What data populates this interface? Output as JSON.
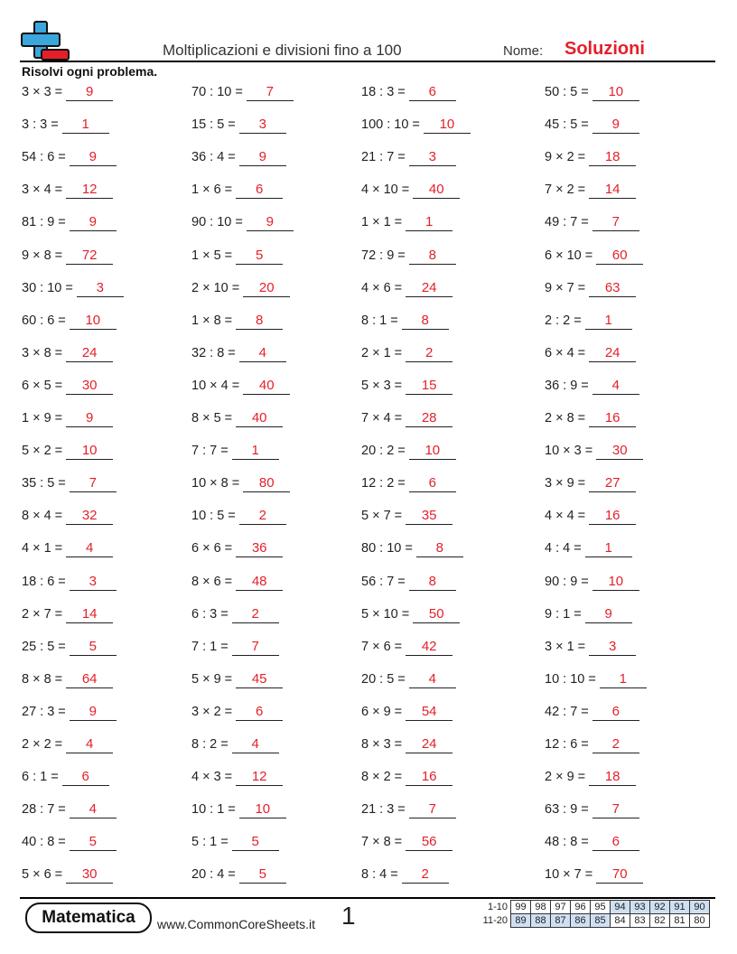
{
  "header": {
    "title": "Moltiplicazioni e divisioni fino a 100",
    "name_label": "Nome:",
    "name_value": "Soluzioni",
    "instructions": "Risolvi ogni problema."
  },
  "columns": [
    [
      {
        "q": "3 × 3 =",
        "a": "9"
      },
      {
        "q": "3 : 3 =",
        "a": "1"
      },
      {
        "q": "54 : 6 =",
        "a": "9"
      },
      {
        "q": "3 × 4 =",
        "a": "12"
      },
      {
        "q": "81 : 9 =",
        "a": "9"
      },
      {
        "q": "9 × 8 =",
        "a": "72"
      },
      {
        "q": "30 : 10 =",
        "a": "3"
      },
      {
        "q": "60 : 6 =",
        "a": "10"
      },
      {
        "q": "3 × 8 =",
        "a": "24"
      },
      {
        "q": "6 × 5 =",
        "a": "30"
      },
      {
        "q": "1 × 9 =",
        "a": "9"
      },
      {
        "q": "5 × 2 =",
        "a": "10"
      },
      {
        "q": "35 : 5 =",
        "a": "7"
      },
      {
        "q": "8 × 4 =",
        "a": "32"
      },
      {
        "q": "4 × 1 =",
        "a": "4"
      },
      {
        "q": "18 : 6 =",
        "a": "3"
      },
      {
        "q": "2 × 7 =",
        "a": "14"
      },
      {
        "q": "25 : 5 =",
        "a": "5"
      },
      {
        "q": "8 × 8 =",
        "a": "64"
      },
      {
        "q": "27 : 3 =",
        "a": "9"
      },
      {
        "q": "2 × 2 =",
        "a": "4"
      },
      {
        "q": "6 : 1 =",
        "a": "6"
      },
      {
        "q": "28 : 7 =",
        "a": "4"
      },
      {
        "q": "40 : 8 =",
        "a": "5"
      },
      {
        "q": "5 × 6 =",
        "a": "30"
      }
    ],
    [
      {
        "q": "70 : 10 =",
        "a": "7"
      },
      {
        "q": "15 : 5 =",
        "a": "3"
      },
      {
        "q": "36 : 4 =",
        "a": "9"
      },
      {
        "q": "1 × 6 =",
        "a": "6"
      },
      {
        "q": "90 : 10 =",
        "a": "9"
      },
      {
        "q": "1 × 5 =",
        "a": "5"
      },
      {
        "q": "2 × 10 =",
        "a": "20"
      },
      {
        "q": "1 × 8 =",
        "a": "8"
      },
      {
        "q": "32 : 8 =",
        "a": "4"
      },
      {
        "q": "10 × 4 =",
        "a": "40"
      },
      {
        "q": "8 × 5 =",
        "a": "40"
      },
      {
        "q": "7 : 7 =",
        "a": "1"
      },
      {
        "q": "10 × 8 =",
        "a": "80"
      },
      {
        "q": "10 : 5 =",
        "a": "2"
      },
      {
        "q": "6 × 6 =",
        "a": "36"
      },
      {
        "q": "8 × 6 =",
        "a": "48"
      },
      {
        "q": "6 : 3 =",
        "a": "2"
      },
      {
        "q": "7 : 1 =",
        "a": "7"
      },
      {
        "q": "5 × 9 =",
        "a": "45"
      },
      {
        "q": "3 × 2 =",
        "a": "6"
      },
      {
        "q": "8 : 2 =",
        "a": "4"
      },
      {
        "q": "4 × 3 =",
        "a": "12"
      },
      {
        "q": "10 : 1 =",
        "a": "10"
      },
      {
        "q": "5 : 1 =",
        "a": "5"
      },
      {
        "q": "20 : 4 =",
        "a": "5"
      }
    ],
    [
      {
        "q": "18 : 3 =",
        "a": "6"
      },
      {
        "q": "100 : 10 =",
        "a": "10"
      },
      {
        "q": "21 : 7 =",
        "a": "3"
      },
      {
        "q": "4 × 10 =",
        "a": "40"
      },
      {
        "q": "1 × 1 =",
        "a": "1"
      },
      {
        "q": "72 : 9 =",
        "a": "8"
      },
      {
        "q": "4 × 6 =",
        "a": "24"
      },
      {
        "q": "8 : 1 =",
        "a": "8"
      },
      {
        "q": "2 × 1 =",
        "a": "2"
      },
      {
        "q": "5 × 3 =",
        "a": "15"
      },
      {
        "q": "7 × 4 =",
        "a": "28"
      },
      {
        "q": "20 : 2 =",
        "a": "10"
      },
      {
        "q": "12 : 2 =",
        "a": "6"
      },
      {
        "q": "5 × 7 =",
        "a": "35"
      },
      {
        "q": "80 : 10 =",
        "a": "8"
      },
      {
        "q": "56 : 7 =",
        "a": "8"
      },
      {
        "q": "5 × 10 =",
        "a": "50"
      },
      {
        "q": "7 × 6 =",
        "a": "42"
      },
      {
        "q": "20 : 5 =",
        "a": "4"
      },
      {
        "q": "6 × 9 =",
        "a": "54"
      },
      {
        "q": "8 × 3 =",
        "a": "24"
      },
      {
        "q": "8 × 2 =",
        "a": "16"
      },
      {
        "q": "21 : 3 =",
        "a": "7"
      },
      {
        "q": "7 × 8 =",
        "a": "56"
      },
      {
        "q": "8 : 4 =",
        "a": "2"
      }
    ],
    [
      {
        "q": "50 : 5 =",
        "a": "10"
      },
      {
        "q": "45 : 5 =",
        "a": "9"
      },
      {
        "q": "9 × 2 =",
        "a": "18"
      },
      {
        "q": "7 × 2 =",
        "a": "14"
      },
      {
        "q": "49 : 7 =",
        "a": "7"
      },
      {
        "q": "6 × 10 =",
        "a": "60"
      },
      {
        "q": "9 × 7 =",
        "a": "63"
      },
      {
        "q": "2 : 2 =",
        "a": "1"
      },
      {
        "q": "6 × 4 =",
        "a": "24"
      },
      {
        "q": "36 : 9 =",
        "a": "4"
      },
      {
        "q": "2 × 8 =",
        "a": "16"
      },
      {
        "q": "10 × 3 =",
        "a": "30"
      },
      {
        "q": "3 × 9 =",
        "a": "27"
      },
      {
        "q": "4 × 4 =",
        "a": "16"
      },
      {
        "q": "4 : 4 =",
        "a": "1"
      },
      {
        "q": "90 : 9 =",
        "a": "10"
      },
      {
        "q": "9 : 1 =",
        "a": "9"
      },
      {
        "q": "3 × 1 =",
        "a": "3"
      },
      {
        "q": "10 : 10 =",
        "a": "1"
      },
      {
        "q": "42 : 7 =",
        "a": "6"
      },
      {
        "q": "12 : 6 =",
        "a": "2"
      },
      {
        "q": "2 × 9 =",
        "a": "18"
      },
      {
        "q": "63 : 9 =",
        "a": "7"
      },
      {
        "q": "48 : 8 =",
        "a": "6"
      },
      {
        "q": "10 × 7 =",
        "a": "70"
      }
    ]
  ],
  "footer": {
    "badge": "Matematica",
    "site": "www.CommonCoreSheets.it",
    "page_number": "1",
    "score_rows": [
      {
        "label": "1-10",
        "values": [
          "99",
          "98",
          "97",
          "96",
          "95",
          "94",
          "93",
          "92",
          "91",
          "90"
        ]
      },
      {
        "label": "11-20",
        "values": [
          "89",
          "88",
          "87",
          "86",
          "85",
          "84",
          "83",
          "82",
          "81",
          "80"
        ]
      }
    ]
  },
  "colors": {
    "answer": "#e51f2a",
    "logo_plus": "#3aa6dc",
    "logo_minus": "#e51f2a",
    "score_shade": "#cfe0f3"
  }
}
